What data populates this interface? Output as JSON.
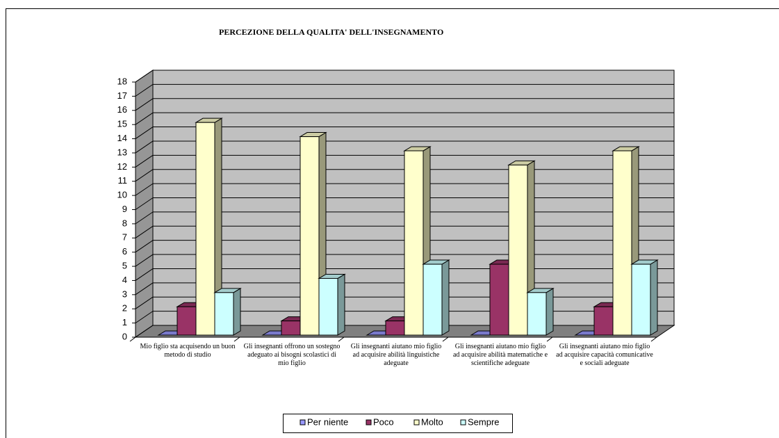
{
  "chart_data": {
    "type": "bar3d",
    "title": "PERCEZIONE DELLA QUALITA' DELL'INSEGNAMENTO",
    "categories": [
      "Mio figlio sta acquisendo un buon metodo di studio",
      "Gli insegnanti offrono un sostegno adeguato ai bisogni scolastici di mio figlio",
      "Gli insegnanti aiutano mio figlio ad acquisire abilità linguistiche adeguate",
      "Gli insegnanti aiutano mio figlio ad acquisire abilità matematiche e scientifiche adeguate",
      "Gli insegnanti aiutano mio figlio ad acquisire capacità comunicative e sociali adeguate"
    ],
    "series": [
      {
        "name": "Per niente",
        "color": "#9999ff",
        "values": [
          0,
          0,
          0,
          0,
          0
        ]
      },
      {
        "name": "Poco",
        "color": "#993366",
        "values": [
          2,
          1,
          1,
          5,
          2
        ]
      },
      {
        "name": "Molto",
        "color": "#ffffcc",
        "values": [
          15,
          14,
          13,
          12,
          13
        ]
      },
      {
        "name": "Sempre",
        "color": "#ccffff",
        "values": [
          3,
          4,
          5,
          3,
          5
        ]
      }
    ],
    "ylim": [
      0,
      18
    ],
    "yticks": [
      0,
      1,
      2,
      3,
      4,
      5,
      6,
      7,
      8,
      9,
      10,
      11,
      12,
      13,
      14,
      15,
      16,
      17,
      18
    ],
    "grid": true,
    "legend": "bottom"
  }
}
